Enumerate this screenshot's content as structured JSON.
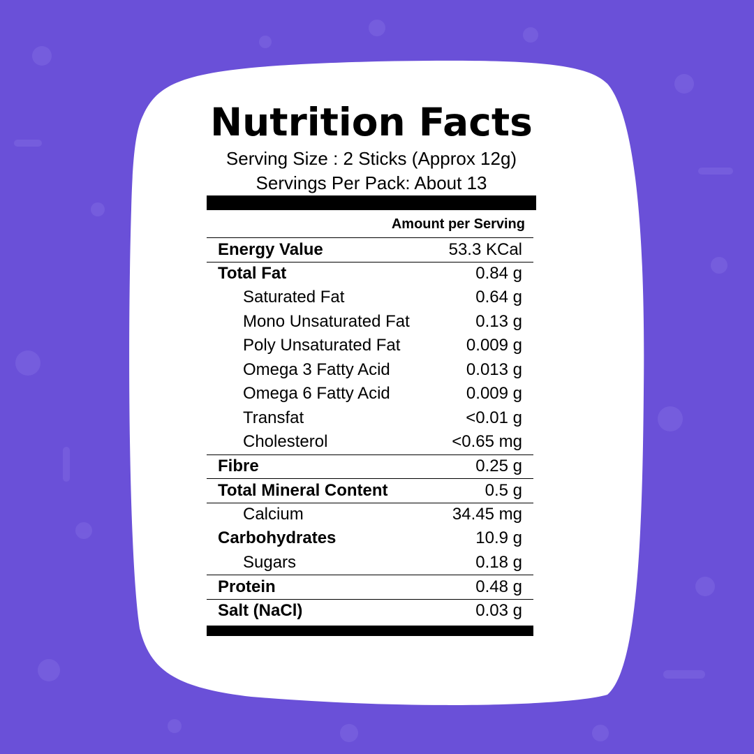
{
  "colors": {
    "background": "#6a50d8",
    "card": "#ffffff",
    "text": "#000000"
  },
  "title": "Nutrition Facts",
  "serving_size": "Serving Size : 2 Sticks (Approx 12g)",
  "servings_per_pack": "Servings Per Pack: About 13",
  "amount_header": "Amount per Serving",
  "rows": [
    {
      "name": "Energy Value",
      "value": "53.3 KCal"
    },
    {
      "name": "Total Fat",
      "value": "0.84 g"
    },
    {
      "name": "Saturated Fat",
      "value": "0.64 g"
    },
    {
      "name": "Mono Unsaturated Fat",
      "value": "0.13 g"
    },
    {
      "name": "Poly Unsaturated Fat",
      "value": "0.009 g"
    },
    {
      "name": "Omega 3 Fatty Acid",
      "value": "0.013 g"
    },
    {
      "name": "Omega 6 Fatty Acid",
      "value": "0.009 g"
    },
    {
      "name": "Transfat",
      "value": "<0.01 g"
    },
    {
      "name": "Cholesterol",
      "value": "<0.65 mg"
    },
    {
      "name": "Fibre",
      "value": "0.25 g"
    },
    {
      "name": "Total Mineral Content",
      "value": "0.5 g"
    },
    {
      "name": "Calcium",
      "value": "34.45 mg"
    },
    {
      "name": "Carbohydrates",
      "value": "10.9 g"
    },
    {
      "name": "Sugars",
      "value": "0.18 g"
    },
    {
      "name": "Protein",
      "value": "0.48 g"
    },
    {
      "name": "Salt (NaCl)",
      "value": "0.03 g"
    }
  ]
}
